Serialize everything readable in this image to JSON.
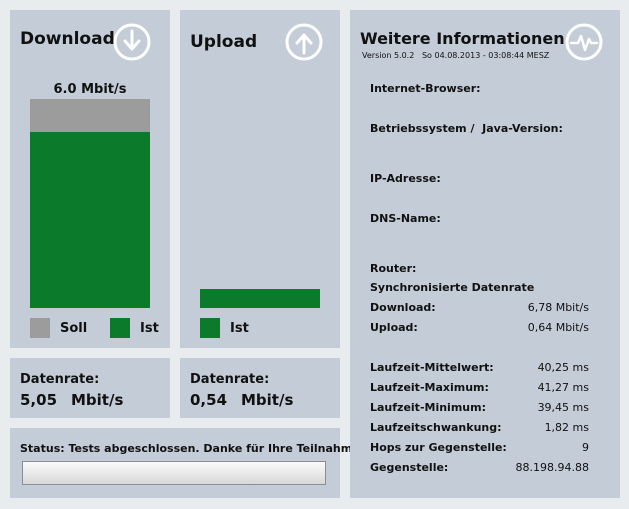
{
  "download": {
    "title": "Download",
    "bar_label": "6.0 Mbit/s",
    "legend_soll": "Soll",
    "legend_ist": "Ist",
    "soll_level": 1.0,
    "ist_level": 0.84,
    "rate_label": "Datenrate:",
    "rate_value": "5,05",
    "rate_unit": "Mbit/s"
  },
  "upload": {
    "title": "Upload",
    "legend_ist": "Ist",
    "ist_level": 0.09,
    "rate_label": "Datenrate:",
    "rate_value": "0,54",
    "rate_unit": "Mbit/s"
  },
  "status": {
    "label": "Status:",
    "text": "Tests abgeschlossen. Danke für Ihre Teilnahme!",
    "progress": 0
  },
  "info": {
    "title": "Weitere Informationen",
    "version": "Version 5.0.2",
    "datetime": "So 04.08.2013 - 03:08:44 MESZ",
    "browser_label": "Internet-Browser:",
    "os_label": "Betriebssystem /  Java-Version:",
    "ip_label": "IP-Adresse:",
    "dns_label": "DNS-Name:",
    "router_label": "Router:",
    "sync_label": "Synchronisierte Datenrate",
    "sync_download_label": "Download:",
    "sync_download_value": "6,78 Mbit/s",
    "sync_upload_label": "Upload:",
    "sync_upload_value": "0,64 Mbit/s",
    "latency_avg_label": "Laufzeit-Mittelwert:",
    "latency_avg_value": "40,25 ms",
    "latency_max_label": "Laufzeit-Maximum:",
    "latency_max_value": "41,27 ms",
    "latency_min_label": "Laufzeit-Minimum:",
    "latency_min_value": "39,45 ms",
    "jitter_label": "Laufzeitschwankung:",
    "jitter_value": "1,82 ms",
    "hops_label": "Hops zur Gegenstelle:",
    "hops_value": "9",
    "remote_label": "Gegenstelle:",
    "remote_value": "88.198.94.88"
  },
  "colors": {
    "panel": "#c3ccd7",
    "soll": "#9c9c9c",
    "ist": "#0b7a2a"
  }
}
